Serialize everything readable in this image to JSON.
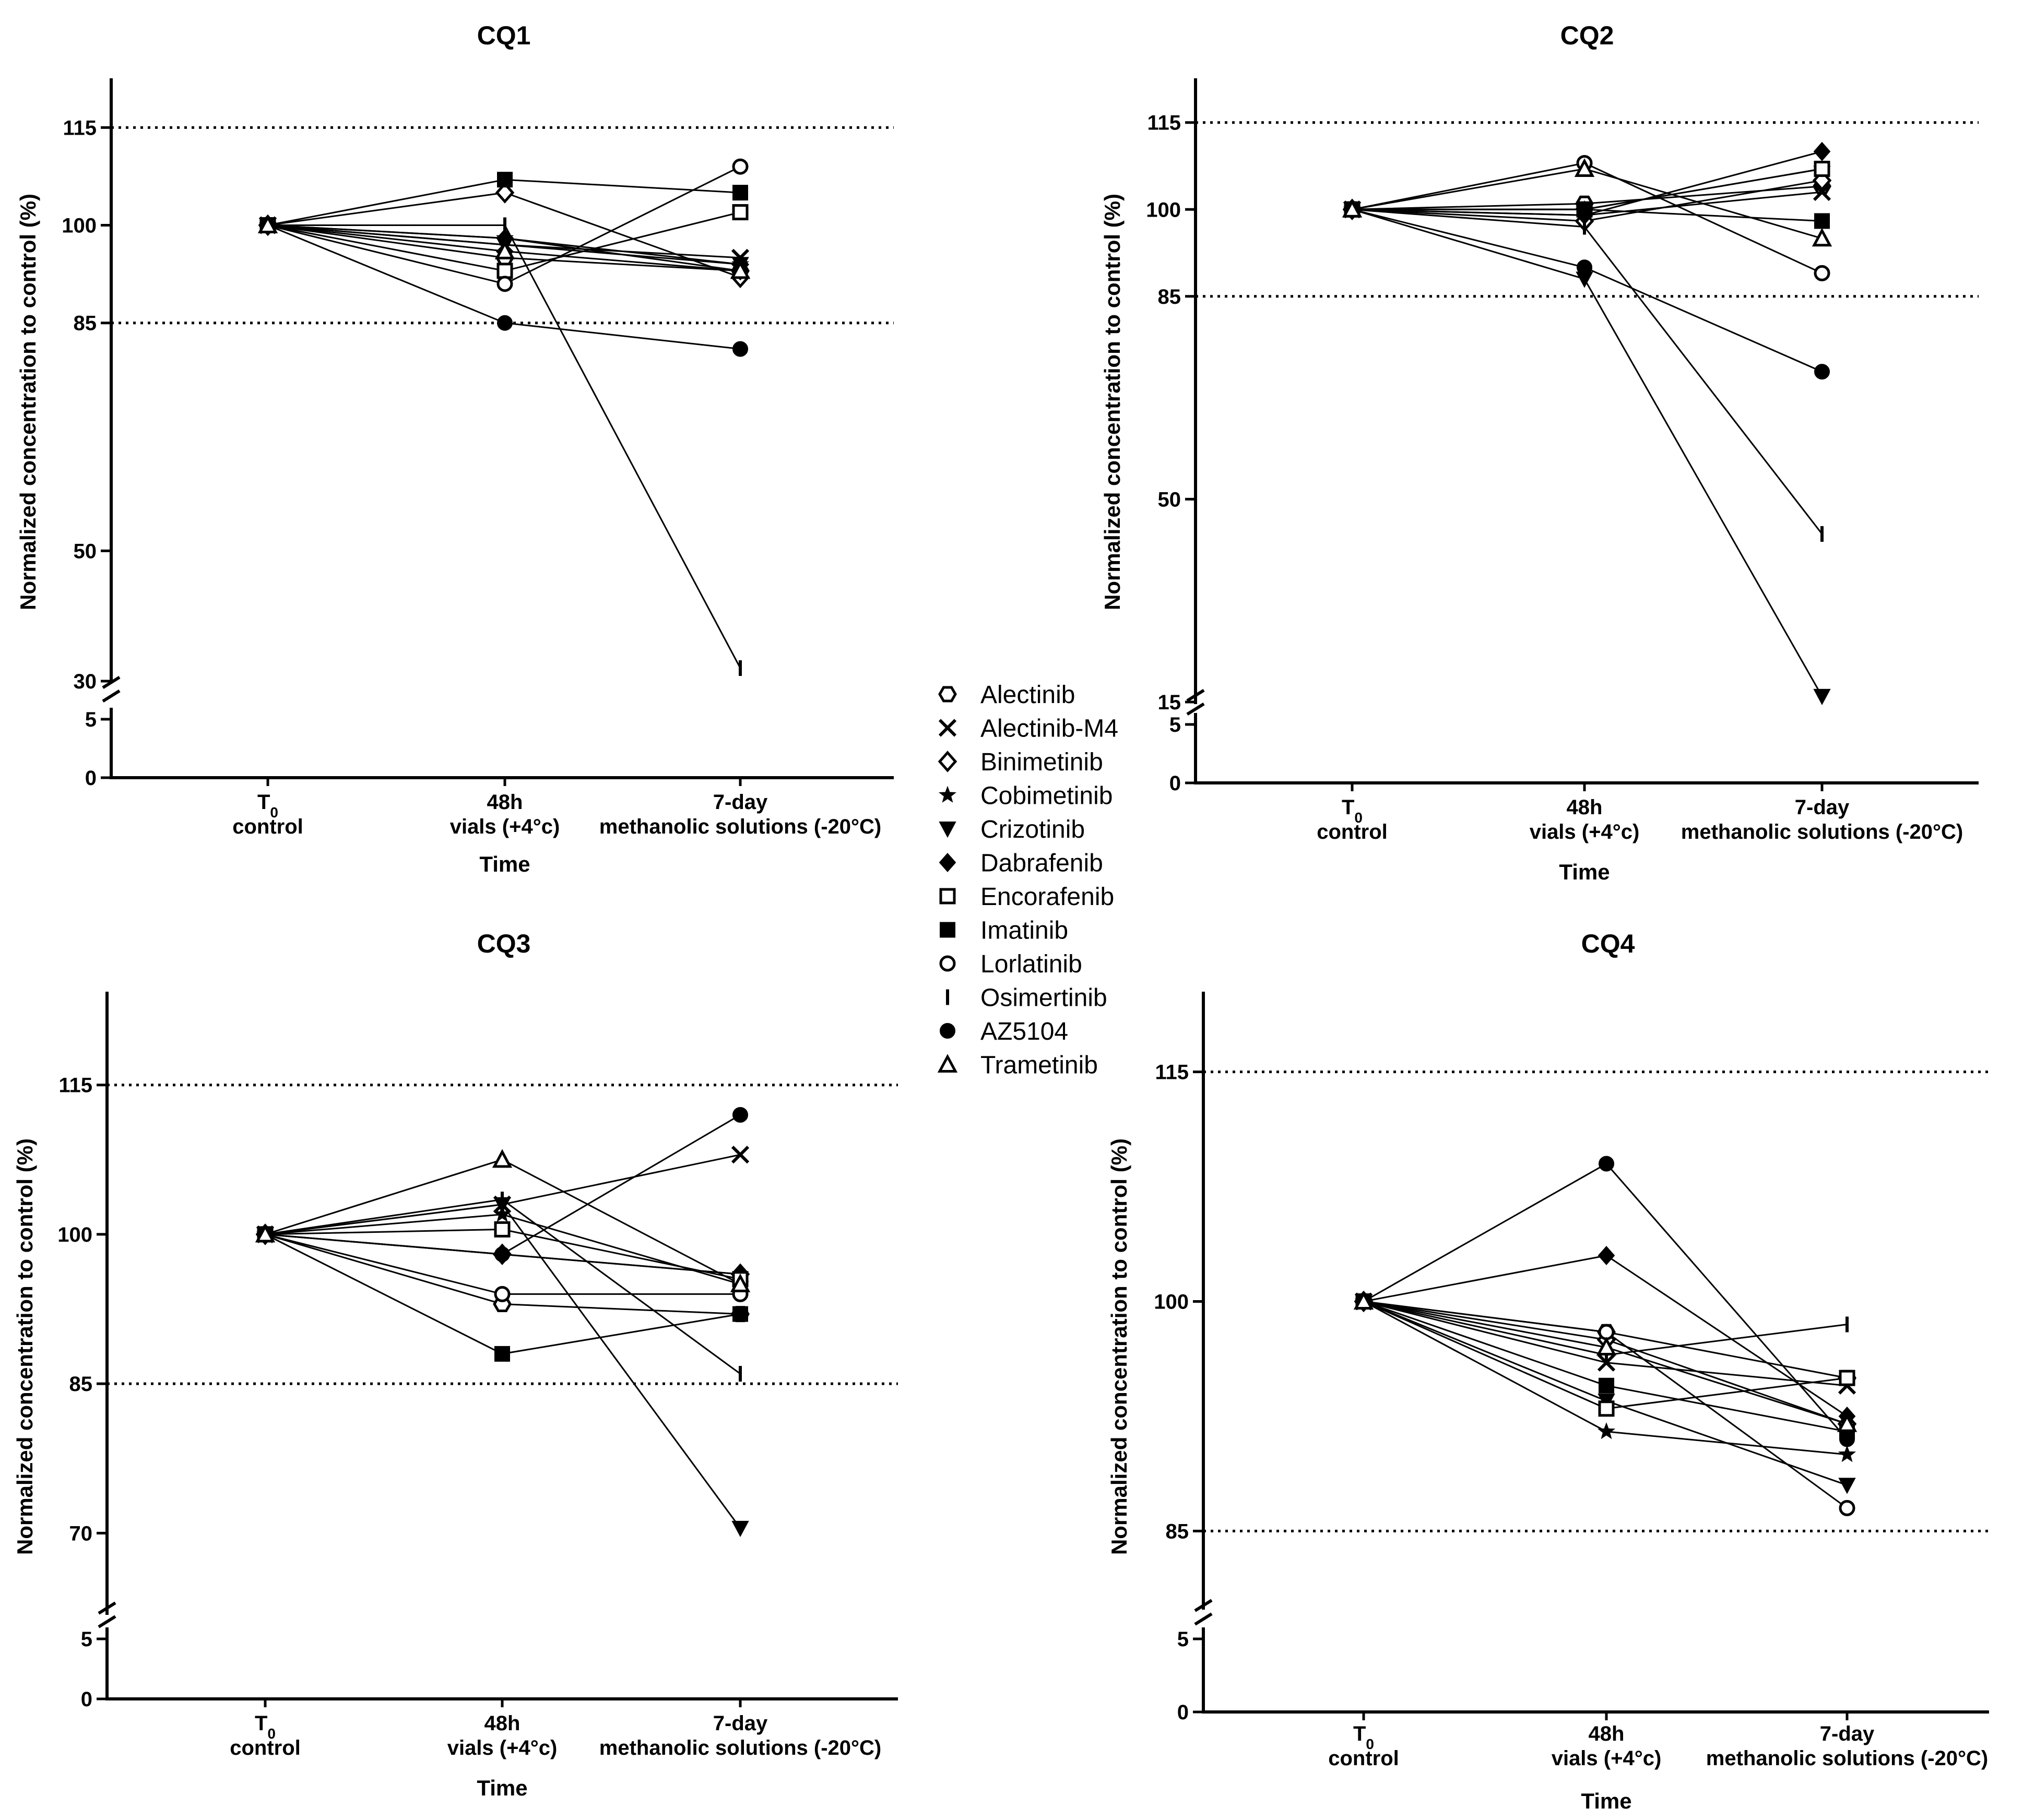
{
  "chart_data": [
    {
      "type": "line",
      "title": "CQ1",
      "xlabel": "Time",
      "ylabel": "Normalized concentration to control (%)",
      "categories": [
        {
          "main": "T",
          "sub": "0",
          "line2": "control"
        },
        {
          "main": "48h",
          "sub": "",
          "line2": "vials (+4°c)"
        },
        {
          "main": "7-day",
          "sub": "",
          "line2": "methanolic solutions (-20°C)"
        }
      ],
      "yticks_upper": [
        30,
        50,
        85,
        100,
        115
      ],
      "yticks_lower": [
        0,
        5
      ],
      "ylim_upper": [
        30,
        122
      ],
      "ylim_lower": [
        0,
        5
      ],
      "reference_lines": [
        85,
        115
      ],
      "series": [
        {
          "name": "Alectinib",
          "values": [
            100,
            95,
            93
          ]
        },
        {
          "name": "Alectinib-M4",
          "values": [
            100,
            97,
            95
          ]
        },
        {
          "name": "Binimetinib",
          "values": [
            100,
            105,
            92
          ]
        },
        {
          "name": "Cobimetinib",
          "values": [
            100,
            98,
            94
          ]
        },
        {
          "name": "Crizotinib",
          "values": [
            100,
            97,
            94
          ]
        },
        {
          "name": "Dabrafenib",
          "values": [
            100,
            98,
            93
          ]
        },
        {
          "name": "Encorafenib",
          "values": [
            100,
            93,
            102
          ]
        },
        {
          "name": "Imatinib",
          "values": [
            100,
            107,
            105
          ]
        },
        {
          "name": "Lorlatinib",
          "values": [
            100,
            91,
            109
          ]
        },
        {
          "name": "Osimertinib",
          "values": [
            100,
            100,
            32
          ]
        },
        {
          "name": "AZ5104",
          "values": [
            100,
            85,
            81
          ]
        },
        {
          "name": "Trametinib",
          "values": [
            100,
            96,
            93
          ]
        }
      ]
    },
    {
      "type": "line",
      "title": "CQ2",
      "xlabel": "Time",
      "ylabel": "Normalized concentration to control (%)",
      "categories": [
        {
          "main": "T",
          "sub": "0",
          "line2": "control"
        },
        {
          "main": "48h",
          "sub": "",
          "line2": "vials (+4°c)"
        },
        {
          "main": "7-day",
          "sub": "",
          "line2": "methanolic solutions (-20°C)"
        }
      ],
      "yticks_upper": [
        15,
        50,
        85,
        100,
        115
      ],
      "yticks_lower": [
        0,
        5
      ],
      "ylim_upper": [
        15,
        122
      ],
      "ylim_lower": [
        0,
        5
      ],
      "reference_lines": [
        85,
        115
      ],
      "series": [
        {
          "name": "Alectinib",
          "values": [
            100,
            101,
            104
          ]
        },
        {
          "name": "Alectinib-M4",
          "values": [
            100,
            99,
            103
          ]
        },
        {
          "name": "Binimetinib",
          "values": [
            100,
            98,
            105
          ]
        },
        {
          "name": "Cobimetinib",
          "values": [
            100,
            100,
            107
          ]
        },
        {
          "name": "Crizotinib",
          "values": [
            100,
            88,
            16
          ]
        },
        {
          "name": "Dabrafenib",
          "values": [
            100,
            99,
            110
          ]
        },
        {
          "name": "Encorafenib",
          "values": [
            100,
            100,
            107
          ]
        },
        {
          "name": "Imatinib",
          "values": [
            100,
            100,
            98
          ]
        },
        {
          "name": "Lorlatinib",
          "values": [
            100,
            108,
            89
          ]
        },
        {
          "name": "Osimertinib",
          "values": [
            100,
            97,
            44
          ]
        },
        {
          "name": "AZ5104",
          "values": [
            100,
            90,
            72
          ]
        },
        {
          "name": "Trametinib",
          "values": [
            100,
            107,
            95
          ]
        }
      ]
    },
    {
      "type": "line",
      "title": "CQ3",
      "xlabel": "Time",
      "ylabel": "Normalized concentration to control (%)",
      "categories": [
        {
          "main": "T",
          "sub": "0",
          "line2": "control"
        },
        {
          "main": "48h",
          "sub": "",
          "line2": "vials (+4°c)"
        },
        {
          "main": "7-day",
          "sub": "",
          "line2": "methanolic solutions (-20°C)"
        }
      ],
      "yticks_upper": [
        70,
        85,
        100,
        115
      ],
      "yticks_lower": [
        0,
        5
      ],
      "ylim_upper": [
        62,
        124
      ],
      "ylim_lower": [
        0,
        5
      ],
      "reference_lines": [
        85,
        115
      ],
      "series": [
        {
          "name": "Alectinib",
          "values": [
            100,
            93,
            92
          ]
        },
        {
          "name": "Alectinib-M4",
          "values": [
            100,
            103,
            108
          ]
        },
        {
          "name": "Binimetinib",
          "values": [
            100,
            98,
            96
          ]
        },
        {
          "name": "Cobimetinib",
          "values": [
            100,
            102,
            95
          ]
        },
        {
          "name": "Crizotinib",
          "values": [
            100,
            103,
            70.5
          ]
        },
        {
          "name": "Dabrafenib",
          "values": [
            100,
            98,
            96
          ]
        },
        {
          "name": "Encorafenib",
          "values": [
            100,
            100.5,
            95.5
          ]
        },
        {
          "name": "Imatinib",
          "values": [
            100,
            88,
            92
          ]
        },
        {
          "name": "Lorlatinib",
          "values": [
            100,
            94,
            94
          ]
        },
        {
          "name": "Osimertinib",
          "values": [
            100,
            103.5,
            86
          ]
        },
        {
          "name": "AZ5104",
          "values": [
            100,
            98,
            112
          ]
        },
        {
          "name": "Trametinib",
          "values": [
            100,
            107.5,
            95
          ]
        }
      ]
    },
    {
      "type": "line",
      "title": "CQ4",
      "xlabel": "Time",
      "ylabel": "Normalized concentration to control (%)",
      "categories": [
        {
          "main": "T",
          "sub": "0",
          "line2": "control"
        },
        {
          "main": "48h",
          "sub": "",
          "line2": "vials (+4°c)"
        },
        {
          "main": "7-day",
          "sub": "",
          "line2": "methanolic solutions (-20°C)"
        }
      ],
      "yticks_upper": [
        85,
        100,
        115
      ],
      "yticks_lower": [
        0,
        5
      ],
      "ylim_upper": [
        80,
        120
      ],
      "ylim_lower": [
        0,
        5
      ],
      "reference_lines": [
        85,
        115
      ],
      "series": [
        {
          "name": "Alectinib",
          "values": [
            100,
            98,
            95
          ]
        },
        {
          "name": "Alectinib-M4",
          "values": [
            100,
            96,
            94.5
          ]
        },
        {
          "name": "Binimetinib",
          "values": [
            100,
            97.5,
            92
          ]
        },
        {
          "name": "Cobimetinib",
          "values": [
            100,
            91.5,
            90
          ]
        },
        {
          "name": "Crizotinib",
          "values": [
            100,
            93.5,
            88
          ]
        },
        {
          "name": "Dabrafenib",
          "values": [
            100,
            103,
            92.5
          ]
        },
        {
          "name": "Encorafenib",
          "values": [
            100,
            93,
            95
          ]
        },
        {
          "name": "Imatinib",
          "values": [
            100,
            94.5,
            91.5
          ]
        },
        {
          "name": "Lorlatinib",
          "values": [
            100,
            98,
            86.5
          ]
        },
        {
          "name": "Osimertinib",
          "values": [
            100,
            96.5,
            98.5
          ]
        },
        {
          "name": "AZ5104",
          "values": [
            100,
            109,
            91
          ]
        },
        {
          "name": "Trametinib",
          "values": [
            100,
            97,
            92
          ]
        }
      ]
    }
  ],
  "legend": {
    "items": [
      {
        "name": "Alectinib",
        "marker": "hexagon-open"
      },
      {
        "name": "Alectinib-M4",
        "marker": "x"
      },
      {
        "name": "Binimetinib",
        "marker": "diamond-open"
      },
      {
        "name": "Cobimetinib",
        "marker": "star"
      },
      {
        "name": "Crizotinib",
        "marker": "triangle-down-filled"
      },
      {
        "name": "Dabrafenib",
        "marker": "diamond-filled"
      },
      {
        "name": "Encorafenib",
        "marker": "square-open"
      },
      {
        "name": "Imatinib",
        "marker": "square-filled"
      },
      {
        "name": "Lorlatinib",
        "marker": "circle-open"
      },
      {
        "name": "Osimertinib",
        "marker": "bar"
      },
      {
        "name": "AZ5104",
        "marker": "circle-filled"
      },
      {
        "name": "Trametinib",
        "marker": "triangle-up-open"
      }
    ]
  }
}
